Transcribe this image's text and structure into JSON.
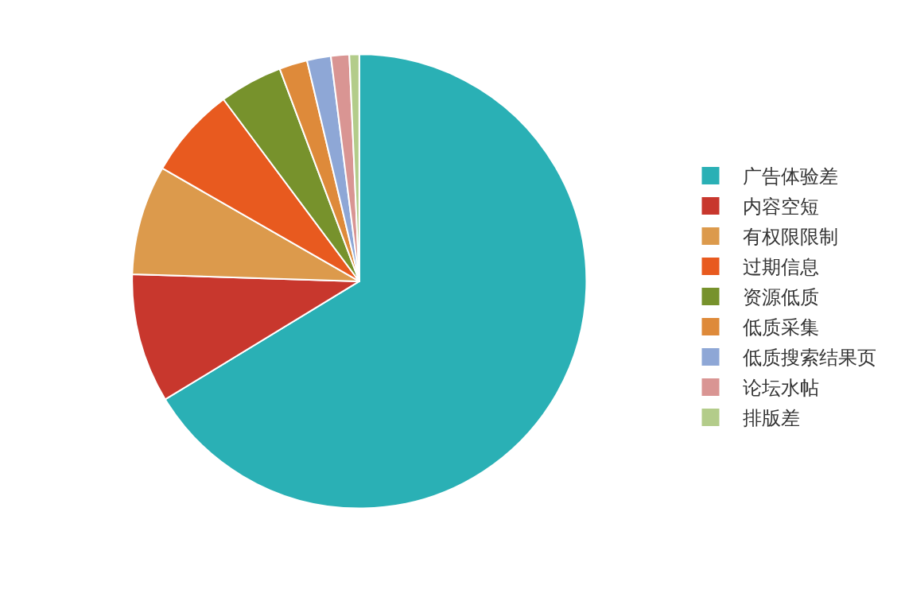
{
  "chart_data": {
    "type": "pie",
    "categories": [
      "广告体验差",
      "内容空短",
      "有权限限制",
      "过期信息",
      "资源低质",
      "低质采集",
      "低质搜索结果页",
      "论坛水帖",
      "排版差"
    ],
    "values": [
      66.3,
      9.2,
      7.8,
      6.5,
      4.5,
      2,
      1.7,
      1.3,
      0.7
    ],
    "colors": [
      "#2ab0b5",
      "#c8372d",
      "#dc9a4c",
      "#e85a1f",
      "#77922c",
      "#de8a3a",
      "#8ea7d6",
      "#d99593",
      "#b3cc8a"
    ],
    "legend": "right"
  }
}
